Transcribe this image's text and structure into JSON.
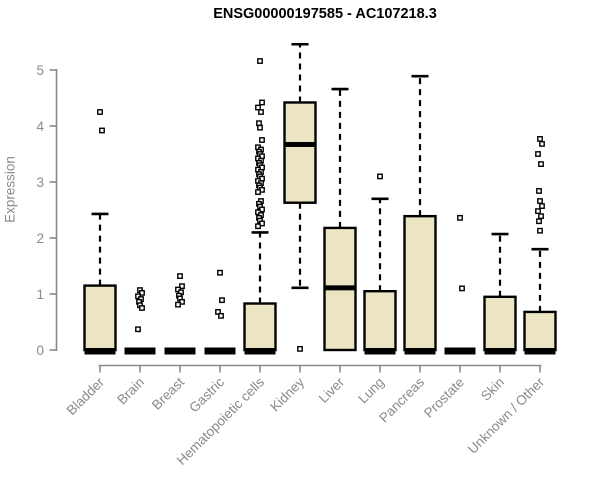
{
  "colors": {
    "background": "#FFFFFF",
    "box_fill": "#ECE5C4",
    "line": "#000000",
    "axis": "#8A8A8A",
    "outlier_fill": "#FFFFFF",
    "title": "#000000"
  },
  "chart_data": {
    "type": "boxplot",
    "title": "ENSG00000197585 - AC107218.3",
    "ylabel": "Expression",
    "xlabel": "",
    "ylim": [
      0,
      5.5
    ],
    "yticks": [
      0,
      1,
      2,
      3,
      4,
      5
    ],
    "grid": false,
    "legend": "none",
    "categories": [
      "Bladder",
      "Brain",
      "Breast",
      "Gastric",
      "Hematopoietic cells",
      "Kidney",
      "Liver",
      "Lung",
      "Pancreas",
      "Prostate",
      "Skin",
      "Unknown / Other"
    ],
    "series": [
      {
        "name": "Bladder",
        "whisker_low": 0,
        "q1": 0,
        "median": 0,
        "q3": 1.15,
        "whisker_high": 2.43,
        "outliers": [
          4.25,
          3.92
        ]
      },
      {
        "name": "Brain",
        "whisker_low": 0,
        "q1": 0,
        "median": 0,
        "q3": 0,
        "whisker_high": 0,
        "outliers": [
          1.07,
          1.02,
          0.96,
          0.91,
          0.86,
          0.8,
          0.75,
          0.37
        ]
      },
      {
        "name": "Breast",
        "whisker_low": 0,
        "q1": 0,
        "median": 0,
        "q3": 0,
        "whisker_high": 0,
        "outliers": [
          1.32,
          1.14,
          1.08,
          1.03,
          0.97,
          0.92,
          0.86,
          0.81
        ]
      },
      {
        "name": "Gastric",
        "whisker_low": 0,
        "q1": 0,
        "median": 0,
        "q3": 0,
        "whisker_high": 0,
        "outliers": [
          1.38,
          0.89,
          0.68,
          0.61
        ]
      },
      {
        "name": "Hematopoietic cells",
        "whisker_low": 0,
        "q1": 0,
        "median": 0,
        "q3": 0.83,
        "whisker_high": 2.1,
        "outliers": [
          5.16,
          4.42,
          4.33,
          4.25,
          4.05,
          3.97,
          3.75,
          3.62,
          3.58,
          3.54,
          3.5,
          3.46,
          3.42,
          3.38,
          3.34,
          3.3,
          3.26,
          3.22,
          3.18,
          3.14,
          3.1,
          3.06,
          3.02,
          2.98,
          2.94,
          2.9,
          2.86,
          2.82,
          2.66,
          2.61,
          2.56,
          2.51,
          2.46,
          2.41,
          2.36,
          2.31,
          2.26,
          2.21
        ]
      },
      {
        "name": "Kidney",
        "whisker_low": 1.11,
        "q1": 2.63,
        "median": 3.67,
        "q3": 4.42,
        "whisker_high": 5.46,
        "outliers": [
          0.02
        ]
      },
      {
        "name": "Liver",
        "whisker_low": 0,
        "q1": 0,
        "median": 1.11,
        "q3": 2.18,
        "whisker_high": 4.66,
        "outliers": []
      },
      {
        "name": "Lung",
        "whisker_low": 0,
        "q1": 0,
        "median": 0,
        "q3": 1.05,
        "whisker_high": 2.7,
        "outliers": [
          3.1
        ]
      },
      {
        "name": "Pancreas",
        "whisker_low": 0,
        "q1": 0,
        "median": 0,
        "q3": 2.39,
        "whisker_high": 4.89,
        "outliers": []
      },
      {
        "name": "Prostate",
        "whisker_low": 0,
        "q1": 0,
        "median": 0,
        "q3": 0,
        "whisker_high": 0,
        "outliers": [
          2.36,
          1.1
        ]
      },
      {
        "name": "Skin",
        "whisker_low": 0,
        "q1": 0,
        "median": 0,
        "q3": 0.95,
        "whisker_high": 2.07,
        "outliers": []
      },
      {
        "name": "Unknown / Other",
        "whisker_low": 0,
        "q1": 0,
        "median": 0,
        "q3": 0.68,
        "whisker_high": 1.8,
        "outliers": [
          3.77,
          3.68,
          3.5,
          3.32,
          2.84,
          2.66,
          2.57,
          2.48,
          2.39,
          2.3,
          2.13
        ]
      }
    ]
  }
}
